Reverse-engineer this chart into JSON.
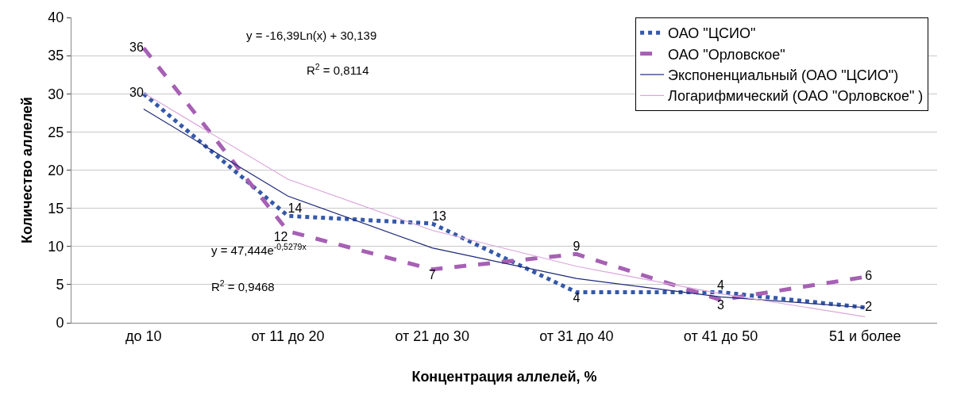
{
  "chart_data": {
    "type": "line",
    "xlabel": "Концентрация аллелей, %",
    "ylabel": "Количество аллелей",
    "categories": [
      "до 10",
      "от 11 до 20",
      "от 21 до 30",
      "от 31 до 40",
      "от 41 до 50",
      "51 и более"
    ],
    "series": [
      {
        "name": "ОАО \"ЦСИО\"",
        "color": "#3558a8",
        "values": [
          30,
          14,
          13,
          4,
          4,
          2
        ],
        "line_style": "dotted",
        "value_labels": [
          "30",
          "14",
          "13",
          "4",
          "4",
          "2"
        ]
      },
      {
        "name": "ОАО \"Орловское\"",
        "color": "#a660b4",
        "values": [
          36,
          12,
          7,
          9,
          3,
          6
        ],
        "line_style": "dashed",
        "value_labels": [
          "36",
          "12",
          "7",
          "9",
          "3",
          "6"
        ]
      },
      {
        "name": "Экспоненциальный (ОАО \"ЦСИО\")",
        "color": "#1f2a78",
        "values": [
          28.0,
          16.6,
          9.8,
          5.8,
          3.4,
          2.0
        ],
        "line_style": "solid"
      },
      {
        "name": "Логарифмический (ОАО \"Орловское\" )",
        "color": "#dba6dc",
        "values": [
          30.1,
          18.8,
          12.1,
          7.4,
          3.8,
          0.8
        ],
        "line_style": "solid"
      }
    ],
    "ylim": [
      0,
      40
    ],
    "yticks": [
      0,
      5,
      10,
      15,
      20,
      25,
      30,
      35,
      40
    ],
    "grid": "y",
    "legend": "top right",
    "marker": "none",
    "annotations": [
      "y = -16,39Ln(x) + 30,139",
      "R$^{2}$ = 0,8114",
      "y = 47,444e$^{-0,5279x}$",
      "R$^{2}$ = 0,9468"
    ]
  }
}
